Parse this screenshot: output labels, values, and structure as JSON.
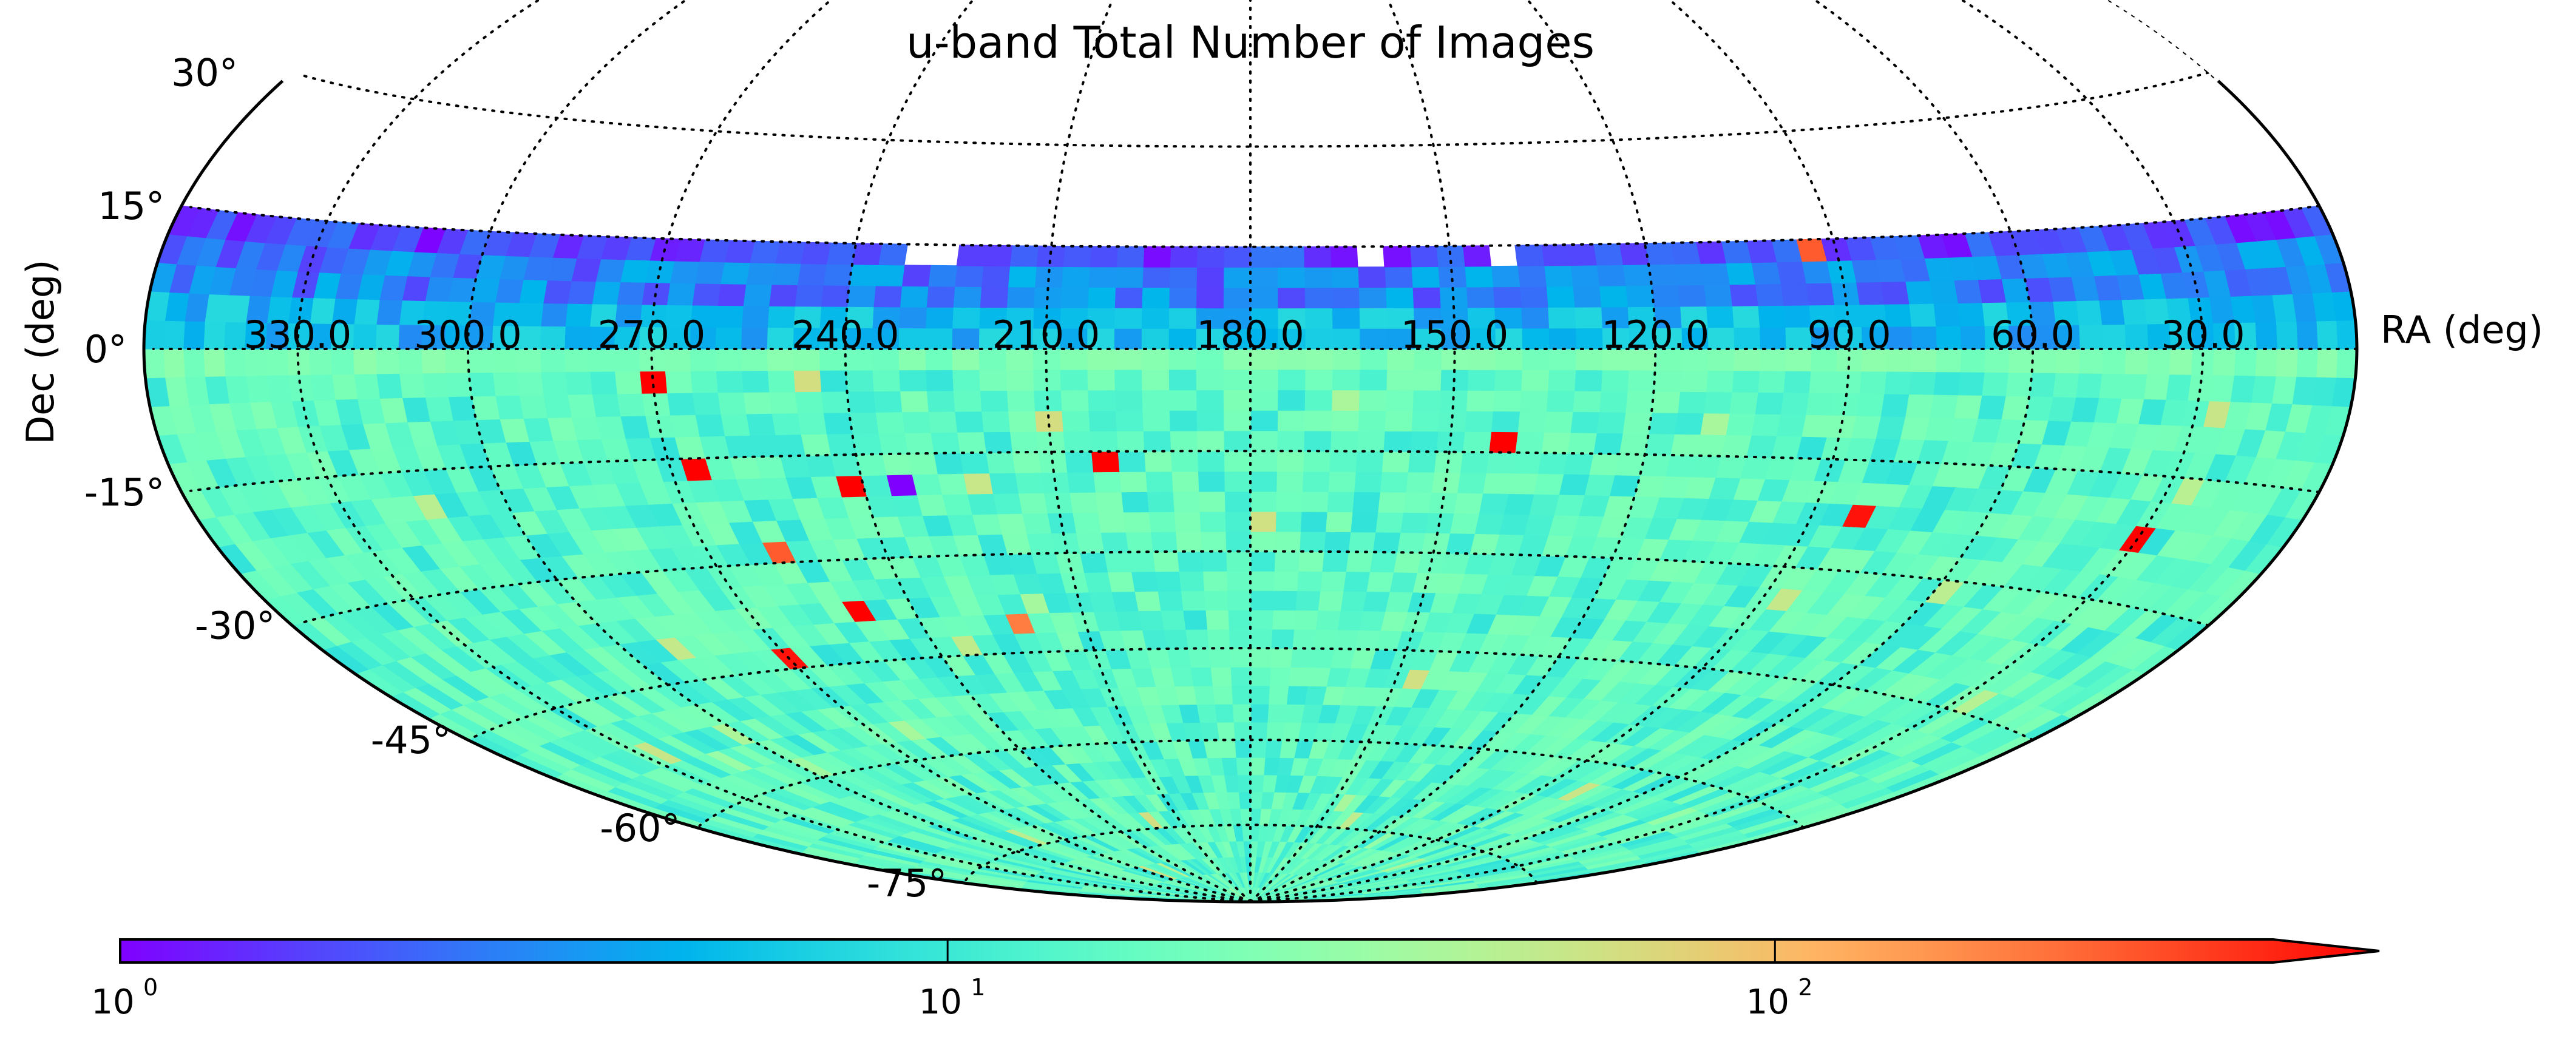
{
  "chart_data": {
    "type": "heatmap",
    "projection": "hammer-aitoff",
    "title": "u-band Total Number of Images",
    "xlabel": "RA (deg)",
    "ylabel": "Dec (deg)",
    "ra_tick_labels": [
      "330.0",
      "300.0",
      "270.0",
      "240.0",
      "210.0",
      "180.0",
      "150.0",
      "120.0",
      "90.0",
      "60.0",
      "30.0"
    ],
    "ra_ticks": [
      330,
      300,
      270,
      240,
      210,
      180,
      150,
      120,
      90,
      60,
      30
    ],
    "dec_ticks": [
      30,
      15,
      0,
      -15,
      -30,
      -45,
      -60,
      -75
    ],
    "dec_tick_labels": [
      "30°",
      "15°",
      "0°",
      "-15°",
      "-30°",
      "-45°",
      "-60°",
      "-75°"
    ],
    "dec_range": [
      -75,
      15
    ],
    "ra_range": [
      0,
      360
    ],
    "colorbar": {
      "scale": "log",
      "colormap": "rainbow",
      "range": [
        1,
        400
      ],
      "extend": "max",
      "tick_values": [
        1,
        10,
        100
      ],
      "tick_labels": [
        "10",
        "10",
        "10"
      ],
      "tick_exponents": [
        "0",
        "1",
        "2"
      ]
    },
    "typical_value_range": [
      8,
      20
    ],
    "notable_cells": [
      {
        "ra": 270,
        "dec": -5,
        "value": 400
      },
      {
        "ra": 265,
        "dec": -18,
        "value": 400
      },
      {
        "ra": 240,
        "dec": -20,
        "value": 400
      },
      {
        "ra": 200,
        "dec": -16,
        "value": 400
      },
      {
        "ra": 140,
        "dec": -14,
        "value": 400
      },
      {
        "ra": 82,
        "dec": -23,
        "value": 350
      },
      {
        "ra": 28,
        "dec": -22,
        "value": 400
      },
      {
        "ra": 248,
        "dec": -37,
        "value": 400
      },
      {
        "ra": 270,
        "dec": -45,
        "value": 350
      },
      {
        "ra": 258,
        "dec": -29,
        "value": 200
      },
      {
        "ra": 220,
        "dec": -40,
        "value": 150
      },
      {
        "ra": 92,
        "dec": 14,
        "value": 200
      },
      {
        "ra": 233,
        "dec": -21,
        "value": 1
      }
    ]
  }
}
